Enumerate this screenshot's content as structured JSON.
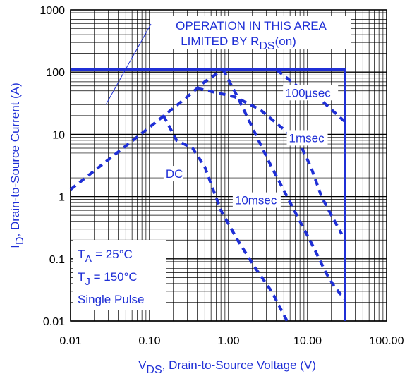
{
  "chart_data": {
    "type": "line",
    "title": "",
    "xscale": "log",
    "yscale": "log",
    "xlim": [
      0.01,
      100
    ],
    "ylim": [
      0.01,
      1000
    ],
    "grid": true,
    "x_tick_labels": [
      "0.01",
      "0.10",
      "1.00",
      "10.00",
      "100.00"
    ],
    "y_tick_labels": [
      "0.01",
      "0.1",
      "1",
      "10",
      "100",
      "1000"
    ],
    "xlabel": {
      "main": "V",
      "sub": "DS",
      "rest": ", Drain-to-Source Voltage (V)"
    },
    "ylabel": {
      "main": "I",
      "sub": "D",
      "rest": ", Drain-to-Source Current (A)"
    },
    "annotation": {
      "line1": "OPERATION IN THIS AREA",
      "line2_main": "LIMITED BY R",
      "line2_sub": "DS",
      "line2_rest": "(on)",
      "pointer_to": {
        "x": 0.028,
        "y": 30
      }
    },
    "conditions": [
      {
        "main": "T",
        "sub": "A",
        "rest": " = 25°C"
      },
      {
        "main": "T",
        "sub": "J",
        "rest": " = 150°C"
      },
      {
        "main": "Single Pulse",
        "sub": "",
        "rest": ""
      }
    ],
    "boundary": {
      "name": "",
      "style": "solid",
      "points": [
        [
          0.01,
          110
        ],
        [
          30,
          110
        ],
        [
          30,
          0.01
        ]
      ]
    },
    "series": [
      {
        "name": "",
        "label": "100µsec",
        "label_pos": {
          "x": 5.2,
          "y": 40
        },
        "style": "dashed",
        "points": [
          [
            0.01,
            1.3
          ],
          [
            0.1,
            13
          ],
          [
            0.3,
            40
          ],
          [
            0.5,
            70
          ],
          [
            0.85,
            110
          ],
          [
            4,
            110
          ],
          [
            8,
            55
          ],
          [
            14,
            38
          ],
          [
            20,
            25
          ],
          [
            28,
            17
          ],
          [
            30,
            16
          ]
        ]
      },
      {
        "name": "",
        "label": "1msec",
        "label_pos": {
          "x": 5.8,
          "y": 7.5
        },
        "style": "dashed",
        "points": [
          [
            0.4,
            55
          ],
          [
            1.2,
            40
          ],
          [
            2.5,
            25
          ],
          [
            5,
            12
          ],
          [
            8,
            7
          ],
          [
            11,
            3
          ],
          [
            15,
            1
          ],
          [
            20,
            0.5
          ],
          [
            27,
            0.25
          ]
        ]
      },
      {
        "name": "",
        "label": "10msec",
        "label_pos": {
          "x": 1.2,
          "y": 0.75
        },
        "style": "dashed",
        "points": [
          [
            0.85,
            110
          ],
          [
            1.3,
            40
          ],
          [
            2.2,
            10
          ],
          [
            3.5,
            3
          ],
          [
            5.5,
            1
          ],
          [
            8,
            0.4
          ],
          [
            12,
            0.15
          ],
          [
            17,
            0.06
          ],
          [
            22,
            0.035
          ],
          [
            30,
            0.022
          ]
        ]
      },
      {
        "name": "",
        "label": "DC",
        "label_pos": {
          "x": 0.16,
          "y": 2.0
        },
        "style": "dashed",
        "points": [
          [
            0.15,
            20
          ],
          [
            0.22,
            8
          ],
          [
            0.35,
            6
          ],
          [
            0.5,
            3
          ],
          [
            0.8,
            0.6
          ],
          [
            1.3,
            0.2
          ],
          [
            2.2,
            0.07
          ],
          [
            3.5,
            0.03
          ],
          [
            5.5,
            0.01
          ]
        ]
      }
    ],
    "colors": {
      "curve": "#1f2fd6",
      "grid": "#000000",
      "text": "#000000"
    }
  }
}
